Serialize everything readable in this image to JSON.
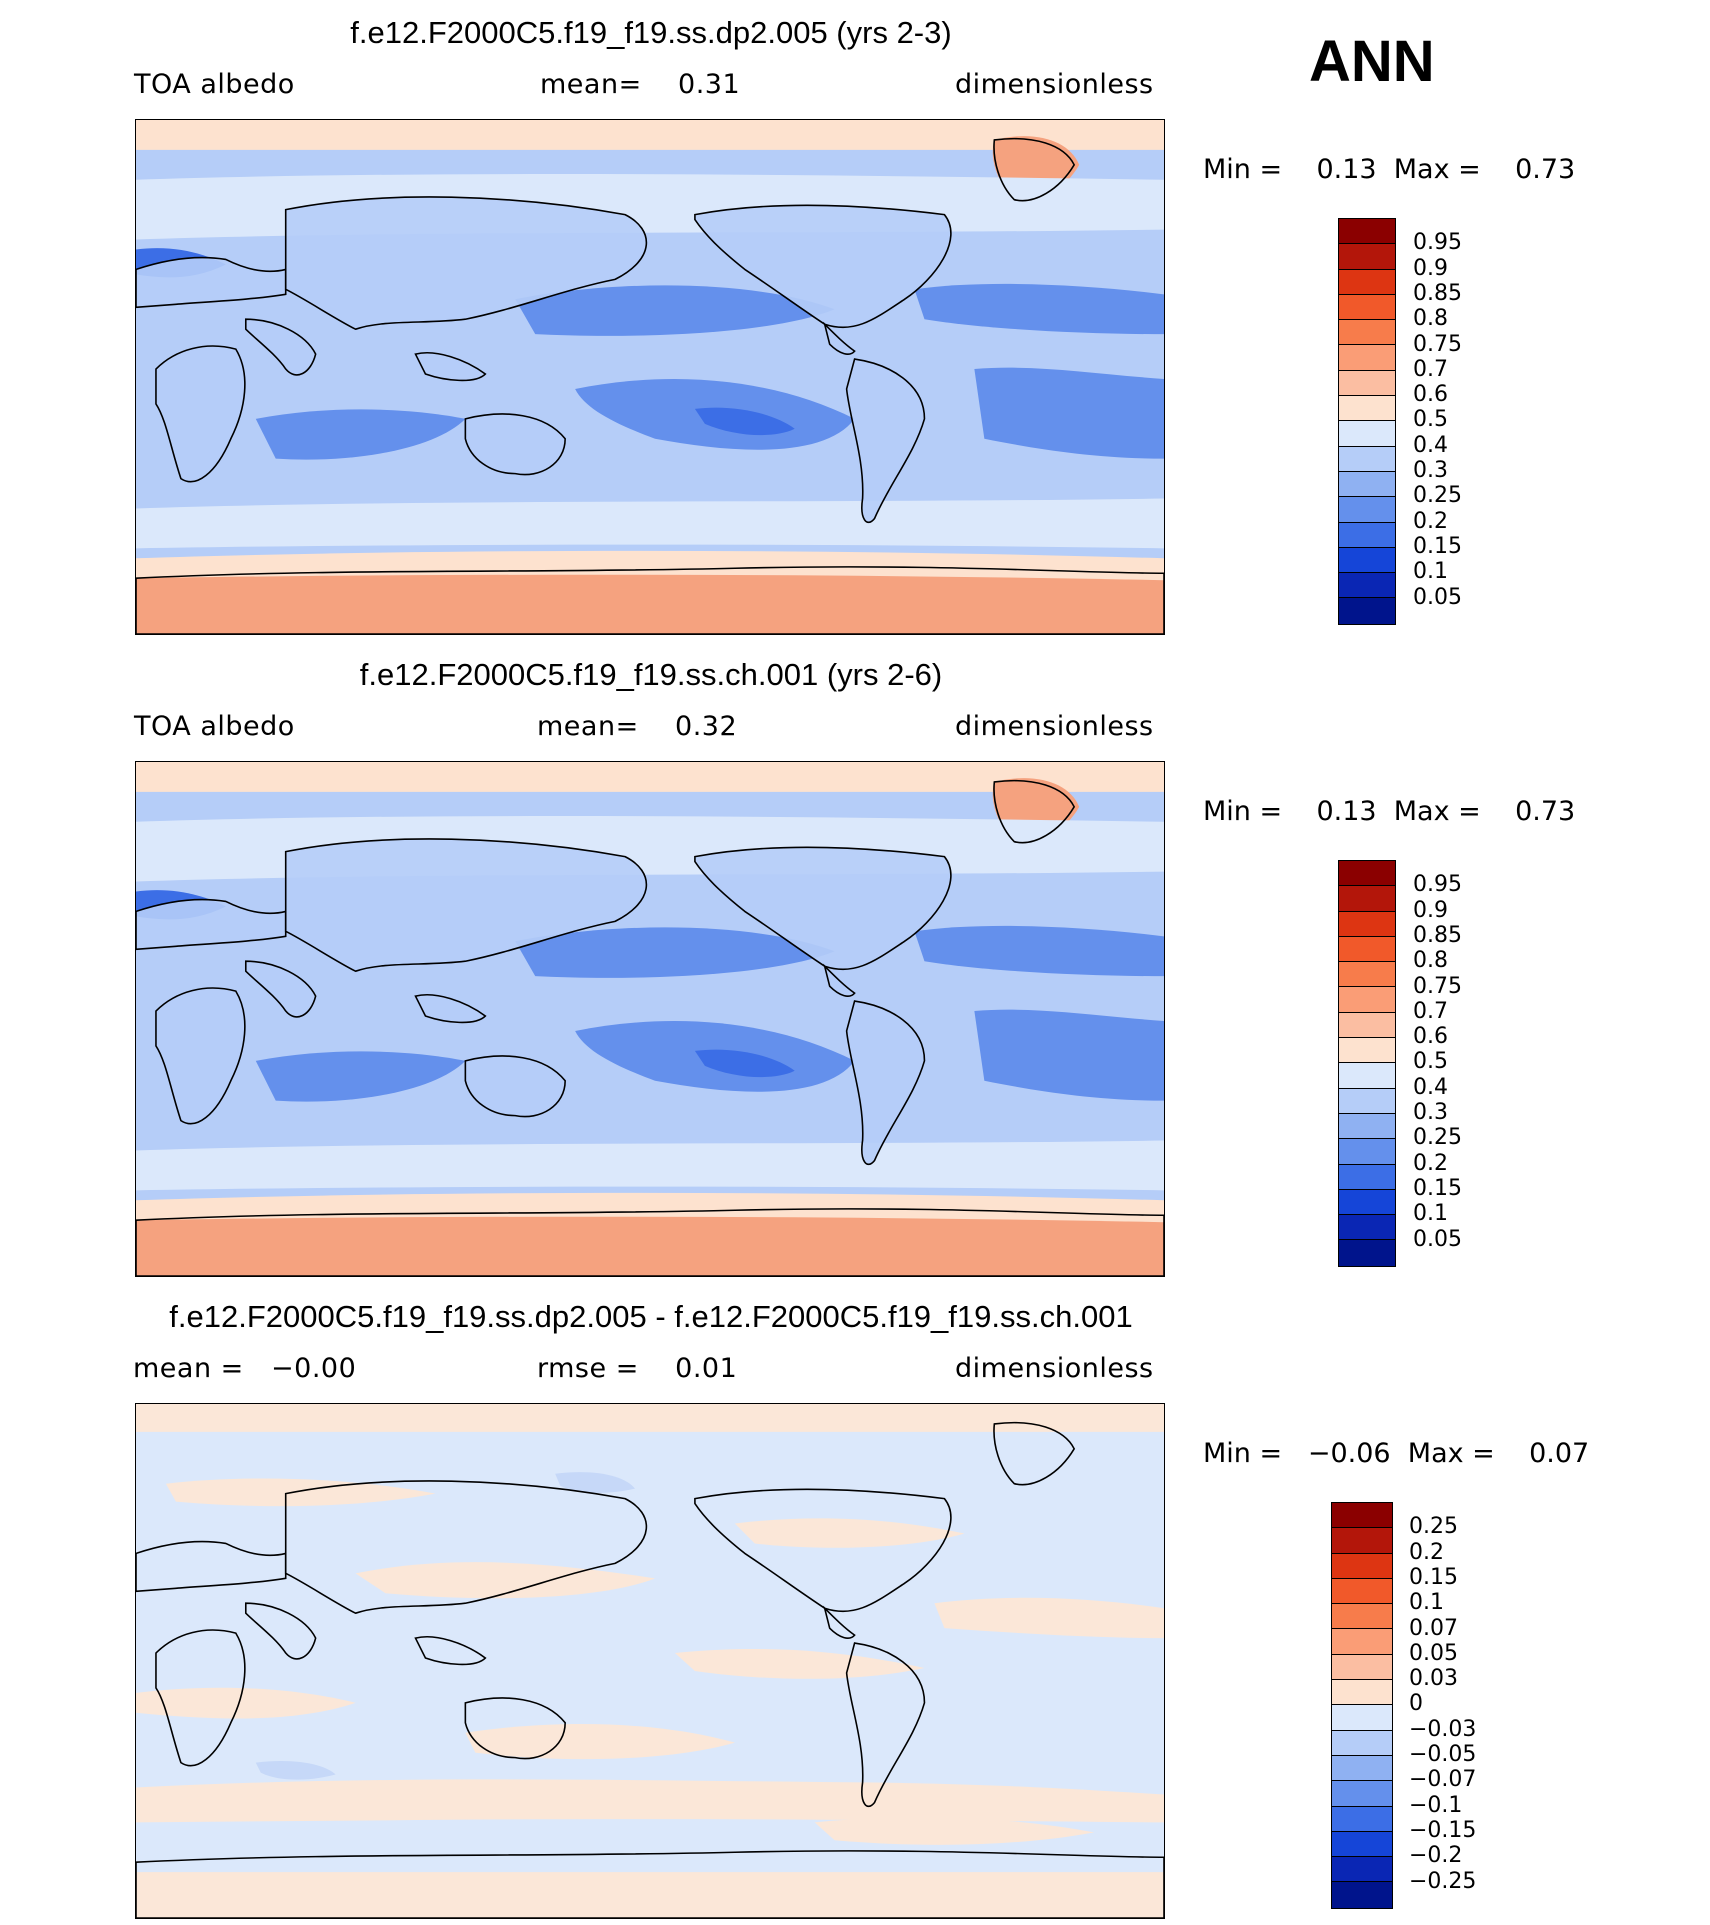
{
  "season": "ANN",
  "variable": "TOA albedo",
  "units": "dimensionless",
  "panels": [
    {
      "title": "f.e12.F2000C5.f19_f19.ss.dp2.005 (yrs 2-3)",
      "left_label": "TOA albedo",
      "center_label": "mean=    0.31",
      "right_label": "dimensionless",
      "minmax": "Min =    0.13  Max =    0.73",
      "colorbar_labels": [
        "0.95",
        "0.9",
        "0.85",
        "0.8",
        "0.75",
        "0.7",
        "0.6",
        "0.5",
        "0.4",
        "0.3",
        "0.25",
        "0.2",
        "0.15",
        "0.1",
        "0.05"
      ],
      "colorbar_colors": [
        "#8b0000",
        "#b3160a",
        "#dd3512",
        "#f1592a",
        "#f77c4b",
        "#fa9d76",
        "#fbbea2",
        "#fde2cf",
        "#dbe8fb",
        "#b5cdf8",
        "#8fb1f2",
        "#6490ec",
        "#3c6ee6",
        "#1545d8",
        "#0a26b4",
        "#00148c"
      ],
      "fill_levels": [
        "#f5a27f",
        "#fde2cf",
        "#dbe8fb",
        "#b5cdf8",
        "#8fb1f2",
        "#6490ec",
        "#3c6ee6"
      ]
    },
    {
      "title": "f.e12.F2000C5.f19_f19.ss.ch.001 (yrs 2-6)",
      "left_label": "TOA albedo",
      "center_label": "mean=    0.32",
      "right_label": "dimensionless",
      "minmax": "Min =    0.13  Max =    0.73",
      "colorbar_labels": [
        "0.95",
        "0.9",
        "0.85",
        "0.8",
        "0.75",
        "0.7",
        "0.6",
        "0.5",
        "0.4",
        "0.3",
        "0.25",
        "0.2",
        "0.15",
        "0.1",
        "0.05"
      ],
      "colorbar_colors": [
        "#8b0000",
        "#b3160a",
        "#dd3512",
        "#f1592a",
        "#f77c4b",
        "#fa9d76",
        "#fbbea2",
        "#fde2cf",
        "#dbe8fb",
        "#b5cdf8",
        "#8fb1f2",
        "#6490ec",
        "#3c6ee6",
        "#1545d8",
        "#0a26b4",
        "#00148c"
      ],
      "fill_levels": [
        "#f5a27f",
        "#fde2cf",
        "#dbe8fb",
        "#b5cdf8",
        "#8fb1f2",
        "#6490ec",
        "#3c6ee6"
      ]
    },
    {
      "title": "f.e12.F2000C5.f19_f19.ss.dp2.005 - f.e12.F2000C5.f19_f19.ss.ch.001",
      "left_label": "mean =   −0.00",
      "center_label": "rmse =    0.01",
      "right_label": "dimensionless",
      "minmax": "Min =   −0.06  Max =    0.07",
      "colorbar_labels": [
        "0.25",
        "0.2",
        "0.15",
        "0.1",
        "0.07",
        "0.05",
        "0.03",
        "0",
        "−0.03",
        "−0.05",
        "−0.07",
        "−0.1",
        "−0.15",
        "−0.2",
        "−0.25"
      ],
      "colorbar_colors": [
        "#8b0000",
        "#b3160a",
        "#dd3512",
        "#f1592a",
        "#f77c4b",
        "#fa9d76",
        "#fbbea2",
        "#fde2cf",
        "#dbe8fb",
        "#b5cdf8",
        "#8fb1f2",
        "#6490ec",
        "#3c6ee6",
        "#1545d8",
        "#0a26b4",
        "#00148c"
      ],
      "fill_levels": [
        "#fbe7d8",
        "#dbe8fb",
        "#c6d8f8"
      ]
    }
  ]
}
